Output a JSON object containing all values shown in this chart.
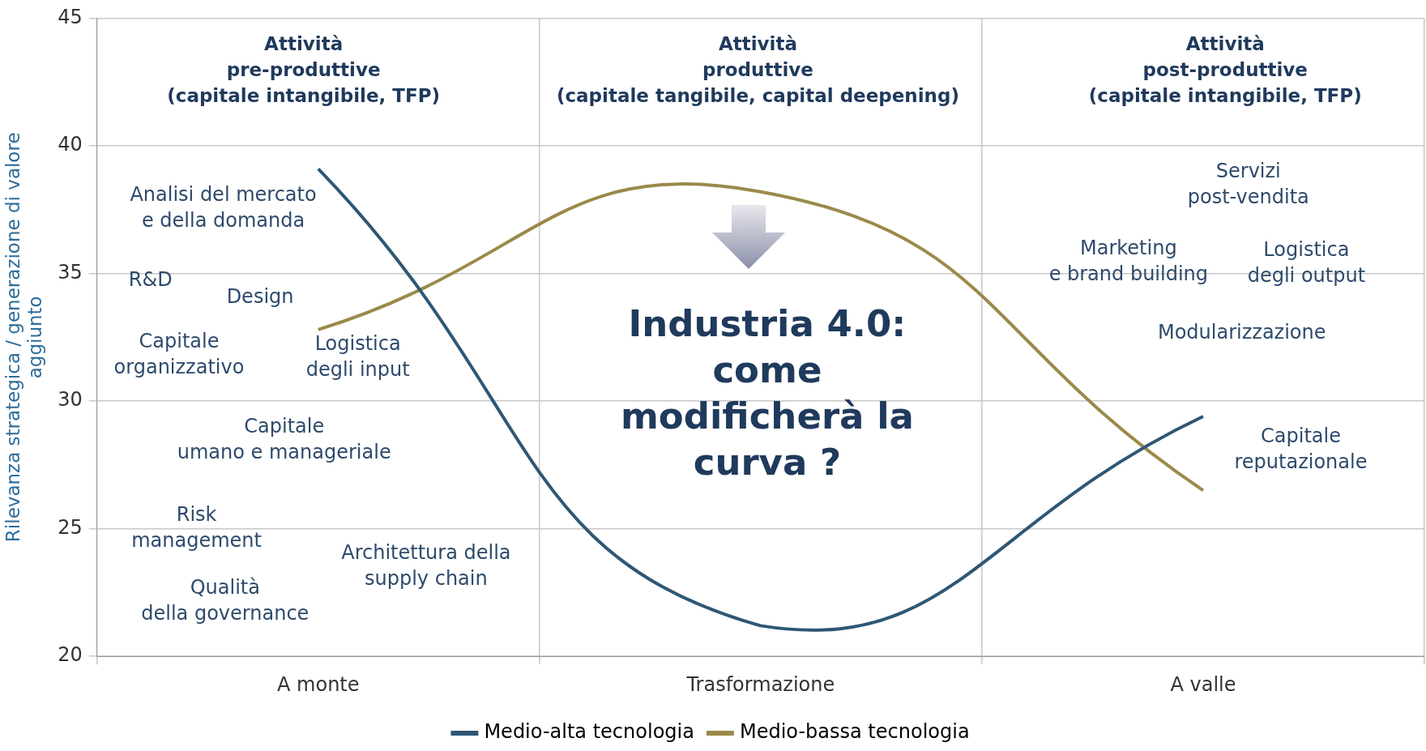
{
  "chart_data": {
    "type": "line",
    "ylabel": "Rilevanza strategica / generazione di valore aggiunto",
    "categories": [
      "A monte",
      "Trasformazione",
      "A valle"
    ],
    "series": [
      {
        "name": "Medio-alta tecnologia",
        "color": "#2e5775",
        "values": [
          39.1,
          21.2,
          29.4
        ]
      },
      {
        "name": "Medio-bassa tecnologia",
        "color": "#9a8a4a",
        "values": [
          32.8,
          38.2,
          26.5
        ]
      }
    ],
    "ylim": [
      20,
      45
    ],
    "yticks": [
      20,
      25,
      30,
      35,
      40,
      45
    ],
    "grid": true,
    "legend": "bottom",
    "marker": "none",
    "line_style": "solid",
    "annotations": [
      "Attività\npre-produttive\n(capitale intangibile, TFP)",
      "Attività\nproduttive\n(capitale tangibile, capital deepening)",
      "Attività\npost-produttive\n(capitale intangibile, TFP)",
      "Analisi del mercato\ne della domanda",
      "R&D",
      "Design",
      "Capitale\norganizzativo",
      "Logistica\ndegli input",
      "Capitale\numano e manageriale",
      "Risk\nmanagement",
      "Qualità\ndella governance",
      "Architettura della\nsupply chain",
      "Servizi\npost-vendita",
      "Marketing\ne brand building",
      "Logistica\ndegli output",
      "Modularizzazione",
      "Capitale\nreputazionale",
      "Industria 4.0:\ncome\nmodificherà la\ncurva ?"
    ]
  }
}
